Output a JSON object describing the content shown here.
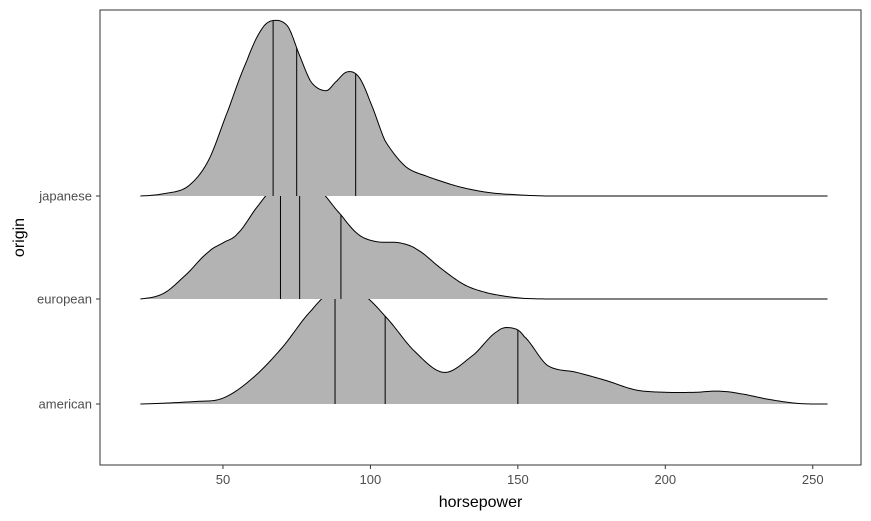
{
  "chart_data": {
    "type": "ridgeline-density",
    "xlabel": "horsepower",
    "ylabel": "origin",
    "xlim": [
      20,
      255
    ],
    "x_ticks": [
      50,
      100,
      150,
      200,
      250
    ],
    "grid": false,
    "panel_border": true,
    "colors": {
      "fill": "#b3b3b3",
      "line": "#000000",
      "axis_text": "#4d4d4d",
      "border": "#333333"
    },
    "series": [
      {
        "name": "american",
        "quantiles": [
          88,
          105,
          150
        ],
        "x": [
          22,
          40,
          50,
          60,
          70,
          80,
          88,
          96,
          105,
          115,
          125,
          135,
          143,
          148,
          152,
          160,
          170,
          180,
          190,
          200,
          210,
          218,
          225,
          235,
          245,
          255
        ],
        "density": [
          0,
          0.02,
          0.05,
          0.22,
          0.48,
          0.8,
          0.98,
          0.96,
          0.75,
          0.45,
          0.27,
          0.42,
          0.62,
          0.65,
          0.58,
          0.33,
          0.27,
          0.2,
          0.12,
          0.1,
          0.1,
          0.11,
          0.09,
          0.04,
          0.005,
          0
        ]
      },
      {
        "name": "european",
        "quantiles": [
          69.5,
          76,
          90
        ],
        "x": [
          22,
          30,
          38,
          45,
          50,
          55,
          62,
          68,
          72,
          76,
          82,
          90,
          96,
          102,
          110,
          116,
          124,
          132,
          140,
          150,
          160,
          255
        ],
        "density": [
          0,
          0.05,
          0.22,
          0.4,
          0.48,
          0.56,
          0.8,
          0.97,
          1.02,
          1.02,
          0.95,
          0.72,
          0.55,
          0.49,
          0.48,
          0.42,
          0.26,
          0.12,
          0.05,
          0.01,
          0,
          0
        ]
      },
      {
        "name": "japanese",
        "quantiles": [
          67,
          75,
          95
        ],
        "x": [
          22,
          30,
          38,
          45,
          52,
          58,
          63,
          67,
          72,
          76,
          80,
          85,
          88,
          92,
          96,
          100,
          105,
          112,
          120,
          130,
          140,
          150,
          160,
          255
        ],
        "density": [
          0,
          0.02,
          0.08,
          0.3,
          0.75,
          1.15,
          1.42,
          1.5,
          1.45,
          1.2,
          0.97,
          0.9,
          0.97,
          1.06,
          1.02,
          0.8,
          0.47,
          0.25,
          0.16,
          0.08,
          0.03,
          0.01,
          0,
          0
        ]
      }
    ]
  }
}
